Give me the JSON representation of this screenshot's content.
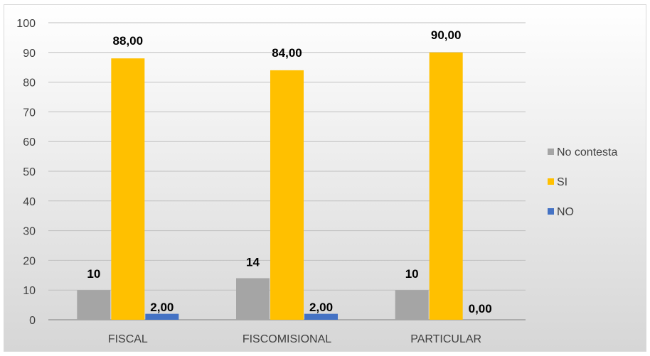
{
  "chart_data": {
    "type": "bar",
    "categories": [
      "FISCAL",
      "FISCOMISIONAL",
      "PARTICULAR"
    ],
    "series": [
      {
        "name": "No contesta",
        "values": [
          10,
          14,
          10
        ],
        "labels": [
          "10",
          "14",
          "10"
        ],
        "color": "#a5a5a5"
      },
      {
        "name": "SI",
        "values": [
          88,
          84,
          90
        ],
        "labels": [
          "88,00",
          "84,00",
          "90,00"
        ],
        "color": "#ffc000"
      },
      {
        "name": "NO",
        "values": [
          2,
          2,
          0
        ],
        "labels": [
          "2,00",
          "2,00",
          "0,00"
        ],
        "color": "#4472c4"
      }
    ],
    "title": "",
    "xlabel": "",
    "ylabel": "",
    "ylim": [
      0,
      100
    ],
    "yticks": [
      "0",
      "10",
      "20",
      "30",
      "40",
      "50",
      "60",
      "70",
      "80",
      "90",
      "100"
    ],
    "grid": true,
    "legend_position": "right"
  }
}
